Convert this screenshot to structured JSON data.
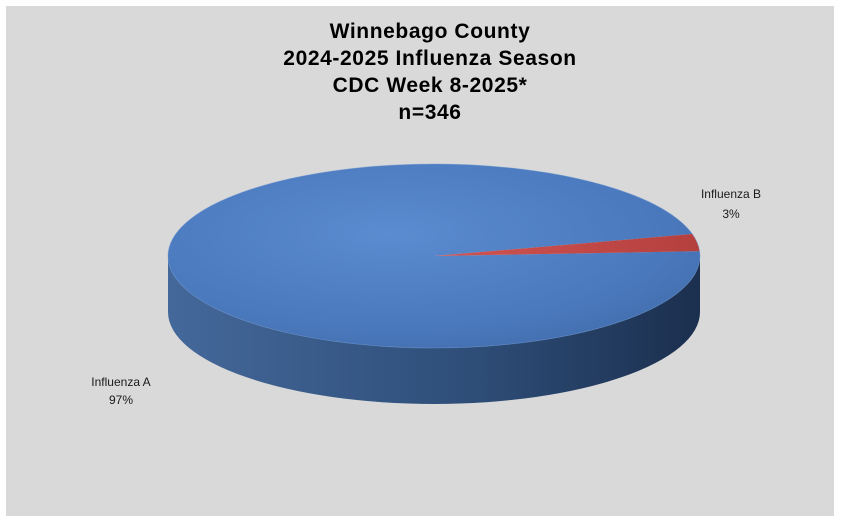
{
  "chart_data": {
    "type": "pie",
    "title_lines": [
      "Winnebago County",
      "2024-2025 Influenza Season",
      "CDC Week 8-2025*",
      "n=346"
    ],
    "categories": [
      "Influenza A",
      "Influenza B"
    ],
    "values": [
      97,
      3
    ],
    "percent_labels": [
      "97%",
      "3%"
    ],
    "colors": [
      "#4f81bd",
      "#c0504d"
    ],
    "style": "3d-pie",
    "legend": "none (data labels beside slices)"
  }
}
